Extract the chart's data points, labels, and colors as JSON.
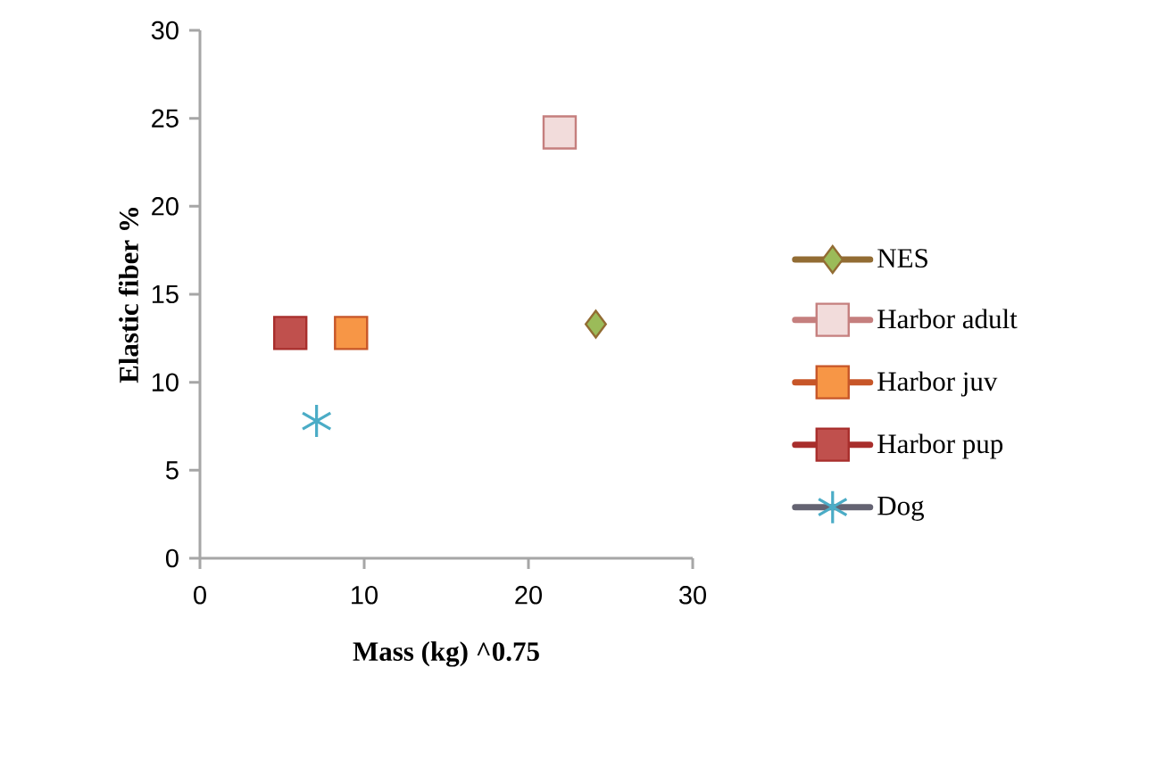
{
  "chart_data": {
    "type": "scatter",
    "xlabel": "Mass (kg) ^0.75",
    "ylabel": "Elastic fiber %",
    "xlim": [
      0,
      30
    ],
    "xticks": [
      0,
      10,
      20,
      30
    ],
    "ylim": [
      0,
      30
    ],
    "yticks": [
      0,
      5,
      10,
      15,
      20,
      25,
      30
    ],
    "grid": false,
    "legend": "right",
    "series": [
      {
        "name": "NES",
        "color": "#9bbb59",
        "marker": "diamond",
        "x": [
          24.1
        ],
        "values": [
          13.3
        ]
      },
      {
        "name": "Harbor adult",
        "color": "#f2dcdb",
        "marker": "square",
        "x": [
          21.9
        ],
        "values": [
          24.2
        ]
      },
      {
        "name": "Harbor juv",
        "color": "#f79646",
        "marker": "square",
        "x": [
          9.2
        ],
        "values": [
          12.8
        ]
      },
      {
        "name": "Harbor pup",
        "color": "#c0504d",
        "marker": "square",
        "x": [
          5.5
        ],
        "values": [
          12.8
        ]
      },
      {
        "name": "Dog",
        "color": "#4bacc6",
        "marker": "cross",
        "x": [
          7.1
        ],
        "values": [
          7.8
        ]
      }
    ]
  }
}
